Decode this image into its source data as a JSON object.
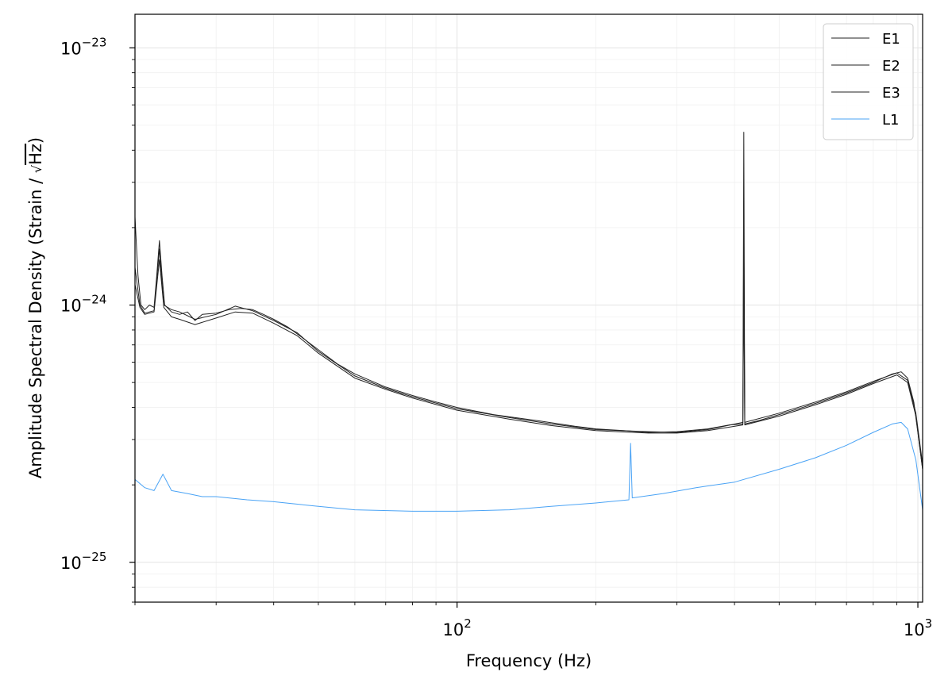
{
  "chart_data": {
    "type": "line",
    "title": "",
    "xlabel": "Frequency (Hz)",
    "ylabel_main": "Amplitude Spectral Density (Strain / ",
    "ylabel_sqrt": "Hz",
    "ylabel_close": ")",
    "xscale": "log",
    "yscale": "log",
    "xlim": [
      20,
      1024
    ],
    "ylim": [
      7e-26,
      1.35e-23
    ],
    "grid": true,
    "legend_position": "top-right",
    "x_ticks": [
      {
        "value": 100,
        "base": "10",
        "exp": "2"
      },
      {
        "value": 1000,
        "base": "10",
        "exp": "3"
      }
    ],
    "y_ticks": [
      {
        "value": 1e-25,
        "base": "10",
        "exp": "−25"
      },
      {
        "value": 1e-24,
        "base": "10",
        "exp": "−24"
      },
      {
        "value": 1e-23,
        "base": "10",
        "exp": "−23"
      }
    ],
    "series": [
      {
        "name": "E1",
        "color": "#222222",
        "points": [
          [
            20,
            2.2e-24
          ],
          [
            20.3,
            1.3e-24
          ],
          [
            20.6,
            1e-24
          ],
          [
            21,
            9.6e-25
          ],
          [
            21.5,
            1e-24
          ],
          [
            22,
            9.8e-25
          ],
          [
            22.3,
            1.3e-24
          ],
          [
            22.6,
            1.78e-24
          ],
          [
            22.9,
            1.3e-24
          ],
          [
            23.2,
            1e-24
          ],
          [
            24,
            9.4e-25
          ],
          [
            25,
            9.2e-25
          ],
          [
            26,
            9.4e-25
          ],
          [
            27,
            8.7e-25
          ],
          [
            28,
            9.2e-25
          ],
          [
            30,
            9.3e-25
          ],
          [
            32,
            9.6e-25
          ],
          [
            34,
            9.7e-25
          ],
          [
            36,
            9.6e-25
          ],
          [
            38,
            9.2e-25
          ],
          [
            40,
            8.8e-25
          ],
          [
            43,
            8.2e-25
          ],
          [
            46,
            7.5e-25
          ],
          [
            50,
            6.7e-25
          ],
          [
            55,
            5.9e-25
          ],
          [
            60,
            5.4e-25
          ],
          [
            70,
            4.8e-25
          ],
          [
            80,
            4.45e-25
          ],
          [
            90,
            4.2e-25
          ],
          [
            100,
            4e-25
          ],
          [
            120,
            3.75e-25
          ],
          [
            150,
            3.55e-25
          ],
          [
            180,
            3.38e-25
          ],
          [
            200,
            3.3e-25
          ],
          [
            230,
            3.25e-25
          ],
          [
            260,
            3.2e-25
          ],
          [
            300,
            3.22e-25
          ],
          [
            350,
            3.3e-25
          ],
          [
            390,
            3.42e-25
          ],
          [
            417,
            3.45e-25
          ],
          [
            419,
            4.7e-24
          ],
          [
            421,
            3.45e-25
          ],
          [
            450,
            3.55e-25
          ],
          [
            500,
            3.75e-25
          ],
          [
            550,
            3.95e-25
          ],
          [
            600,
            4.15e-25
          ],
          [
            700,
            4.55e-25
          ],
          [
            800,
            5e-25
          ],
          [
            880,
            5.4e-25
          ],
          [
            920,
            5.5e-25
          ],
          [
            950,
            5.2e-25
          ],
          [
            980,
            4.2e-25
          ],
          [
            1000,
            3.2e-25
          ],
          [
            1024,
            2.3e-25
          ]
        ]
      },
      {
        "name": "E2",
        "color": "#222222",
        "points": [
          [
            20,
            1.4e-24
          ],
          [
            20.5,
            1e-24
          ],
          [
            21,
            9.3e-25
          ],
          [
            22,
            9.5e-25
          ],
          [
            22.6,
            1.65e-24
          ],
          [
            23.1,
            1e-24
          ],
          [
            24,
            9.6e-25
          ],
          [
            25,
            9.4e-25
          ],
          [
            27,
            8.8e-25
          ],
          [
            30,
            9.2e-25
          ],
          [
            33,
            9.9e-25
          ],
          [
            36,
            9.5e-25
          ],
          [
            40,
            8.7e-25
          ],
          [
            45,
            7.8e-25
          ],
          [
            50,
            6.6e-25
          ],
          [
            60,
            5.3e-25
          ],
          [
            70,
            4.75e-25
          ],
          [
            80,
            4.4e-25
          ],
          [
            100,
            3.95e-25
          ],
          [
            130,
            3.65e-25
          ],
          [
            160,
            3.45e-25
          ],
          [
            200,
            3.28e-25
          ],
          [
            260,
            3.22e-25
          ],
          [
            300,
            3.2e-25
          ],
          [
            350,
            3.28e-25
          ],
          [
            417,
            3.5e-25
          ],
          [
            419,
            2e-24
          ],
          [
            421,
            3.5e-25
          ],
          [
            500,
            3.8e-25
          ],
          [
            600,
            4.2e-25
          ],
          [
            700,
            4.6e-25
          ],
          [
            800,
            5.05e-25
          ],
          [
            900,
            5.45e-25
          ],
          [
            950,
            5.1e-25
          ],
          [
            990,
            3.8e-25
          ],
          [
            1024,
            2.4e-25
          ]
        ]
      },
      {
        "name": "E3",
        "color": "#222222",
        "points": [
          [
            20,
            1.2e-24
          ],
          [
            20.5,
            9.8e-25
          ],
          [
            21,
            9.2e-25
          ],
          [
            22,
            9.4e-25
          ],
          [
            22.6,
            1.5e-24
          ],
          [
            23.1,
            9.8e-25
          ],
          [
            24,
            9e-25
          ],
          [
            25,
            8.8e-25
          ],
          [
            27,
            8.4e-25
          ],
          [
            30,
            8.9e-25
          ],
          [
            33,
            9.4e-25
          ],
          [
            36,
            9.3e-25
          ],
          [
            40,
            8.5e-25
          ],
          [
            45,
            7.6e-25
          ],
          [
            50,
            6.5e-25
          ],
          [
            60,
            5.2e-25
          ],
          [
            70,
            4.7e-25
          ],
          [
            80,
            4.35e-25
          ],
          [
            100,
            3.9e-25
          ],
          [
            130,
            3.6e-25
          ],
          [
            160,
            3.4e-25
          ],
          [
            200,
            3.25e-25
          ],
          [
            260,
            3.18e-25
          ],
          [
            300,
            3.18e-25
          ],
          [
            350,
            3.25e-25
          ],
          [
            417,
            3.42e-25
          ],
          [
            419,
            1.2e-24
          ],
          [
            421,
            3.42e-25
          ],
          [
            500,
            3.7e-25
          ],
          [
            600,
            4.1e-25
          ],
          [
            700,
            4.5e-25
          ],
          [
            800,
            4.95e-25
          ],
          [
            900,
            5.35e-25
          ],
          [
            950,
            5e-25
          ],
          [
            990,
            3.7e-25
          ],
          [
            1024,
            2.3e-25
          ]
        ]
      },
      {
        "name": "L1",
        "color": "#4aa3f5",
        "points": [
          [
            20,
            2.1e-25
          ],
          [
            21,
            1.95e-25
          ],
          [
            22,
            1.9e-25
          ],
          [
            23,
            2.2e-25
          ],
          [
            24,
            1.9e-25
          ],
          [
            26,
            1.85e-25
          ],
          [
            28,
            1.8e-25
          ],
          [
            30,
            1.8e-25
          ],
          [
            35,
            1.75e-25
          ],
          [
            40,
            1.72e-25
          ],
          [
            50,
            1.65e-25
          ],
          [
            60,
            1.6e-25
          ],
          [
            80,
            1.58e-25
          ],
          [
            100,
            1.58e-25
          ],
          [
            130,
            1.6e-25
          ],
          [
            160,
            1.65e-25
          ],
          [
            200,
            1.7e-25
          ],
          [
            236,
            1.75e-25
          ],
          [
            238,
            2.9e-25
          ],
          [
            240,
            1.78e-25
          ],
          [
            280,
            1.85e-25
          ],
          [
            330,
            1.95e-25
          ],
          [
            400,
            2.05e-25
          ],
          [
            500,
            2.3e-25
          ],
          [
            600,
            2.55e-25
          ],
          [
            700,
            2.85e-25
          ],
          [
            800,
            3.2e-25
          ],
          [
            880,
            3.45e-25
          ],
          [
            920,
            3.5e-25
          ],
          [
            950,
            3.3e-25
          ],
          [
            990,
            2.5e-25
          ],
          [
            1024,
            1.6e-25
          ]
        ]
      }
    ]
  }
}
